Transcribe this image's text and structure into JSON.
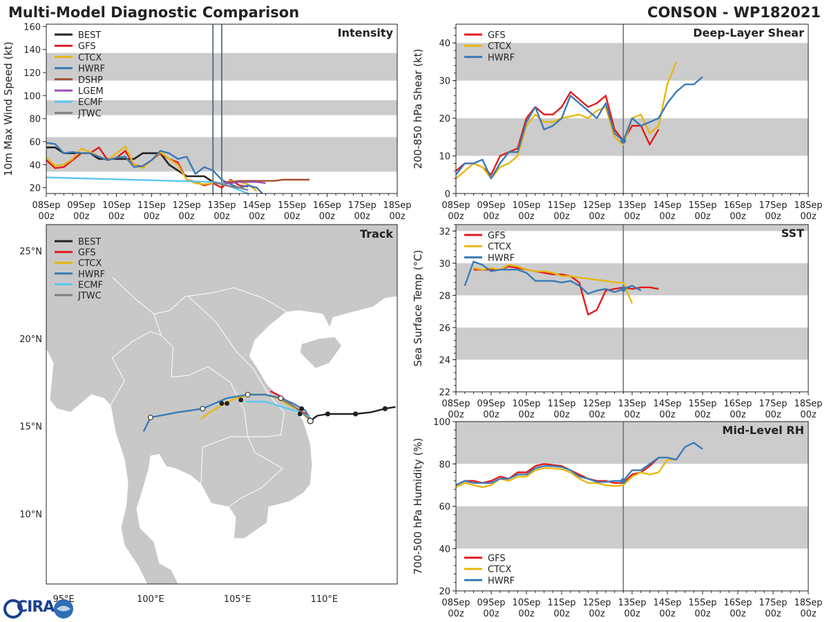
{
  "figure": {
    "title_left": "Multi-Model Diagnostic Comparison",
    "title_right": "CONSON - WP182021",
    "logo_text": "CIRA"
  },
  "colors": {
    "BEST": "#222222",
    "GFS": "#e31a1c",
    "CTCX": "#e8b70f",
    "HWRF": "#3a7ab6",
    "DSHP": "#a0522d",
    "LGEM": "#9b4fb0",
    "ECMF": "#5bc8f0",
    "JTWC": "#808080",
    "band": "#cccccc",
    "land": "#c8c8c8",
    "vline": "#607890"
  },
  "chart_data": [
    {
      "id": "intensity",
      "type": "line",
      "title": "Intensity",
      "ylabel": "10m Max Wind Speed (kt)",
      "xlim": [
        0,
        240
      ],
      "ylim": [
        15,
        162
      ],
      "yticks": [
        20,
        40,
        60,
        80,
        100,
        120,
        140,
        160
      ],
      "bands": [
        [
          34,
          64
        ],
        [
          83,
          96
        ],
        [
          113,
          137
        ]
      ],
      "x_ticks": [
        "08Sep\n00z",
        "09Sep\n00z",
        "10Sep\n00z",
        "11Sep\n00z",
        "12Sep\n00z",
        "13Sep\n00z",
        "14Sep\n00z",
        "15Sep\n00z",
        "16Sep\n00z",
        "17Sep\n00z",
        "18Sep\n00z"
      ],
      "vlines": [
        114,
        120
      ],
      "legend": [
        "BEST",
        "GFS",
        "CTCX",
        "HWRF",
        "DSHP",
        "LGEM",
        "ECMF",
        "JTWC"
      ],
      "series": [
        {
          "name": "BEST",
          "x": [
            0,
            6,
            12,
            18,
            24,
            30,
            36,
            42,
            48,
            54,
            60,
            66,
            72,
            78,
            84,
            90,
            96,
            102,
            108,
            114
          ],
          "y": [
            55,
            55,
            50,
            50,
            50,
            50,
            45,
            45,
            45,
            45,
            45,
            50,
            50,
            50,
            40,
            35,
            30,
            30,
            30,
            25
          ]
        },
        {
          "name": "GFS",
          "x": [
            0,
            6,
            12,
            18,
            24,
            30,
            36,
            42,
            48,
            54,
            60,
            66,
            72,
            78,
            84,
            90,
            96,
            102,
            108,
            114,
            120,
            126,
            132,
            138
          ],
          "y": [
            44,
            37,
            38,
            44,
            50,
            50,
            55,
            44,
            46,
            52,
            40,
            38,
            44,
            50,
            45,
            42,
            27,
            25,
            22,
            24,
            20,
            27,
            22,
            21
          ]
        },
        {
          "name": "CTCX",
          "x": [
            0,
            6,
            12,
            18,
            24,
            30,
            36,
            42,
            48,
            54,
            60,
            66,
            72,
            78,
            84,
            90,
            96,
            102,
            108,
            114,
            120,
            126,
            132,
            138,
            144
          ],
          "y": [
            46,
            39,
            40,
            45,
            54,
            51,
            47,
            44,
            50,
            56,
            40,
            37,
            44,
            51,
            45,
            40,
            27,
            24,
            23,
            24,
            24,
            26,
            25,
            23,
            17
          ]
        },
        {
          "name": "HWRF",
          "x": [
            0,
            6,
            12,
            18,
            24,
            30,
            36,
            42,
            48,
            54,
            60,
            66,
            72,
            78,
            84,
            90,
            96,
            102,
            108,
            114,
            120,
            126,
            132,
            138,
            144,
            150
          ],
          "y": [
            59,
            58,
            50,
            51,
            50,
            50,
            47,
            44,
            46,
            47,
            38,
            39,
            44,
            52,
            50,
            45,
            47,
            32,
            38,
            35,
            27,
            23,
            20,
            22,
            20,
            12
          ]
        },
        {
          "name": "DSHP",
          "x": [
            114,
            120,
            126,
            132,
            138,
            144,
            150,
            156,
            162,
            168,
            174,
            180
          ],
          "y": [
            24,
            24,
            25,
            26,
            26,
            26,
            26,
            26,
            27,
            27,
            27,
            27
          ]
        },
        {
          "name": "LGEM",
          "x": [
            114,
            120,
            126,
            132,
            138,
            144,
            150
          ],
          "y": [
            24,
            24,
            24,
            25,
            25,
            25,
            24
          ]
        },
        {
          "name": "ECMF",
          "x": [
            0,
            114,
            120,
            126,
            132,
            138,
            144,
            150
          ],
          "y": [
            29,
            25,
            24,
            21,
            18,
            15,
            12,
            10
          ]
        },
        {
          "name": "JTWC",
          "x": [
            114,
            120,
            126,
            132,
            138
          ],
          "y": [
            25,
            23,
            21,
            20,
            18
          ]
        }
      ]
    },
    {
      "id": "shear",
      "type": "line",
      "title": "Deep-Layer Shear",
      "ylabel": "200-850 hPa Shear (kt)",
      "xlim": [
        0,
        240
      ],
      "ylim": [
        0,
        45
      ],
      "yticks": [
        0,
        10,
        20,
        30,
        40
      ],
      "bands": [
        [
          10,
          20
        ],
        [
          30,
          40
        ]
      ],
      "x_ticks": [
        "08Sep\n00z",
        "09Sep\n00z",
        "10Sep\n00z",
        "11Sep\n00z",
        "12Sep\n00z",
        "13Sep\n00z",
        "14Sep\n00z",
        "15Sep\n00z",
        "16Sep\n00z",
        "17Sep\n00z",
        "18Sep\n00z"
      ],
      "vlines": [
        114
      ],
      "legend": [
        "GFS",
        "CTCX",
        "HWRF"
      ],
      "series": [
        {
          "name": "GFS",
          "x": [
            0,
            6,
            12,
            18,
            24,
            30,
            36,
            42,
            48,
            54,
            60,
            66,
            72,
            78,
            84,
            90,
            96,
            102,
            108,
            114,
            120,
            126,
            132,
            138,
            144
          ],
          "y": [
            6,
            8,
            8,
            7,
            5,
            10,
            11,
            12,
            20,
            23,
            21,
            21,
            23,
            27,
            25,
            23,
            24,
            26,
            17,
            14,
            18,
            18,
            13,
            17,
            null
          ]
        },
        {
          "name": "CTCX",
          "x": [
            0,
            6,
            12,
            18,
            24,
            30,
            36,
            42,
            48,
            54,
            60,
            66,
            72,
            78,
            84,
            90,
            96,
            102,
            108,
            114,
            120,
            126,
            132,
            138,
            144,
            150,
            156
          ],
          "y": [
            4,
            6,
            8,
            7,
            4,
            7,
            8,
            10,
            18,
            21,
            19,
            19,
            20,
            20.5,
            21,
            20,
            22,
            23,
            15,
            13,
            20,
            21,
            16,
            18,
            29,
            35,
            null
          ]
        },
        {
          "name": "HWRF",
          "x": [
            0,
            6,
            12,
            18,
            24,
            30,
            36,
            42,
            48,
            54,
            60,
            66,
            72,
            78,
            84,
            90,
            96,
            102,
            108,
            114,
            120,
            126,
            132,
            138,
            144,
            150,
            156,
            162,
            168
          ],
          "y": [
            5,
            8,
            8,
            9,
            4,
            8,
            11,
            11,
            19,
            23,
            17,
            18,
            20,
            26,
            24,
            22,
            20,
            24,
            16,
            14,
            20,
            18,
            19,
            20,
            24,
            27,
            29,
            29,
            31
          ]
        }
      ]
    },
    {
      "id": "sst",
      "type": "line",
      "title": "SST",
      "ylabel": "Sea Surface Temp (°C)",
      "xlim": [
        0,
        240
      ],
      "ylim": [
        22,
        32.4
      ],
      "yticks": [
        22,
        24,
        26,
        28,
        30,
        32
      ],
      "bands": [
        [
          24,
          26
        ],
        [
          28,
          30
        ],
        [
          32,
          32.4
        ]
      ],
      "x_ticks": [
        "08Sep\n00z",
        "09Sep\n00z",
        "10Sep\n00z",
        "11Sep\n00z",
        "12Sep\n00z",
        "13Sep\n00z",
        "14Sep\n00z",
        "15Sep\n00z",
        "16Sep\n00z",
        "17Sep\n00z",
        "18Sep\n00z"
      ],
      "vlines": [
        114
      ],
      "legend": [
        "GFS",
        "CTCX",
        "HWRF"
      ],
      "series": [
        {
          "name": "GFS",
          "x": [
            12,
            18,
            24,
            30,
            36,
            42,
            48,
            54,
            60,
            66,
            72,
            78,
            84,
            90,
            96,
            102,
            108,
            114,
            120,
            126,
            132,
            138
          ],
          "y": [
            29.6,
            29.6,
            29.6,
            29.6,
            29.8,
            29.7,
            29.6,
            29.5,
            29.4,
            29.3,
            29.3,
            29.2,
            28.8,
            26.8,
            27.1,
            28.3,
            28.4,
            28.5,
            28.4,
            28.5,
            28.5,
            28.4
          ]
        },
        {
          "name": "CTCX",
          "x": [
            12,
            18,
            24,
            30,
            36,
            42,
            48,
            54,
            60,
            66,
            72,
            78,
            84,
            102,
            108,
            114,
            120
          ],
          "y": [
            29.7,
            29.6,
            29.7,
            29.6,
            29.9,
            29.8,
            29.6,
            29.5,
            29.5,
            29.4,
            29.2,
            29.2,
            29.1,
            28.9,
            28.8,
            28.8,
            27.5
          ]
        },
        {
          "name": "HWRF",
          "x": [
            6,
            12,
            18,
            24,
            30,
            36,
            42,
            48,
            54,
            60,
            66,
            72,
            78,
            84,
            90,
            96,
            102,
            108,
            114,
            120,
            126
          ],
          "y": [
            28.6,
            30.1,
            29.9,
            29.5,
            29.6,
            29.6,
            29.6,
            29.4,
            28.9,
            28.9,
            28.9,
            28.8,
            28.9,
            28.6,
            28.1,
            28.3,
            28.4,
            28.2,
            28.4,
            28.6,
            28.3
          ]
        }
      ]
    },
    {
      "id": "rh",
      "type": "line",
      "title": "Mid-Level RH",
      "ylabel": "700-500 hPa Humidity (%)",
      "xlim": [
        0,
        240
      ],
      "ylim": [
        20,
        100
      ],
      "yticks": [
        20,
        40,
        60,
        80,
        100
      ],
      "bands": [
        [
          40,
          60
        ],
        [
          80,
          100
        ]
      ],
      "x_ticks": [
        "08Sep\n00z",
        "09Sep\n00z",
        "10Sep\n00z",
        "11Sep\n00z",
        "12Sep\n00z",
        "13Sep\n00z",
        "14Sep\n00z",
        "15Sep\n00z",
        "16Sep\n00z",
        "17Sep\n00z",
        "18Sep\n00z"
      ],
      "vlines": [
        114
      ],
      "legend": [
        "GFS",
        "CTCX",
        "HWRF"
      ],
      "series": [
        {
          "name": "GFS",
          "x": [
            0,
            6,
            12,
            18,
            24,
            30,
            36,
            42,
            48,
            54,
            60,
            66,
            72,
            78,
            84,
            90,
            96,
            102,
            108,
            114,
            120,
            126,
            132,
            138
          ],
          "y": [
            70,
            72,
            72,
            71,
            72,
            74,
            73,
            76,
            76,
            79,
            80,
            79.5,
            79,
            77,
            75,
            73,
            72,
            72,
            71,
            71,
            75,
            76,
            79,
            83
          ]
        },
        {
          "name": "CTCX",
          "x": [
            0,
            6,
            12,
            18,
            24,
            30,
            36,
            42,
            48,
            54,
            60,
            66,
            72,
            78,
            84,
            90,
            96,
            102,
            108,
            114,
            120,
            126,
            132,
            138,
            144,
            150
          ],
          "y": [
            69,
            71,
            70,
            69,
            70,
            73,
            72,
            74,
            74,
            77,
            78,
            78,
            77.5,
            76,
            73,
            71,
            71,
            70,
            69.5,
            70,
            74,
            76,
            75,
            76,
            82,
            82
          ]
        },
        {
          "name": "HWRF",
          "x": [
            0,
            6,
            12,
            18,
            24,
            30,
            36,
            42,
            48,
            54,
            60,
            66,
            72,
            78,
            84,
            90,
            96,
            102,
            108,
            114,
            120,
            126,
            132,
            138,
            144,
            150,
            156,
            162,
            168
          ],
          "y": [
            70,
            72,
            71,
            71,
            71,
            73,
            73,
            75,
            75,
            78,
            79,
            79,
            78.5,
            77,
            74,
            73,
            71.5,
            71.5,
            72,
            72,
            77,
            77,
            80,
            83,
            83,
            82,
            88,
            90,
            87
          ]
        }
      ]
    },
    {
      "id": "track",
      "type": "scatter",
      "title": "Track",
      "xlim": [
        94.0,
        114.2
      ],
      "ylim": [
        6.0,
        26.5
      ],
      "lon_ticks": [
        "95°E",
        "100°E",
        "105°E",
        "110°E"
      ],
      "lat_ticks": [
        "10°N",
        "15°N",
        "20°N",
        "25°N"
      ],
      "legend": [
        "BEST",
        "GFS",
        "CTCX",
        "HWRF",
        "ECMF",
        "JTWC"
      ],
      "series": [
        {
          "name": "BEST",
          "lon": [
            114.1,
            113.5,
            112.7,
            111.8,
            111.0,
            110.2,
            109.6,
            109.2
          ],
          "lat": [
            16.1,
            16.0,
            15.8,
            15.7,
            15.7,
            15.7,
            15.6,
            15.3
          ]
        },
        {
          "name": "GFS",
          "lon": [
            109.2,
            109.1,
            108.6,
            108.0,
            107.5,
            106.9
          ],
          "lat": [
            15.3,
            15.6,
            15.9,
            16.3,
            16.7,
            17.0
          ]
        },
        {
          "name": "CTCX",
          "lon": [
            109.2,
            108.7,
            108.0,
            107.3,
            106.6,
            105.8,
            104.9,
            104.1,
            103.4,
            102.9
          ],
          "lat": [
            15.3,
            15.8,
            16.2,
            16.6,
            16.8,
            16.8,
            16.6,
            16.2,
            15.8,
            15.4
          ]
        },
        {
          "name": "HWRF",
          "lon": [
            109.2,
            108.9,
            108.2,
            107.5,
            106.6,
            105.6,
            104.4,
            103.0,
            101.6,
            100.0,
            99.6
          ],
          "lat": [
            15.4,
            15.9,
            16.3,
            16.6,
            16.8,
            16.8,
            16.6,
            16.0,
            15.8,
            15.5,
            14.7
          ]
        },
        {
          "name": "ECMF",
          "lon": [
            109.2,
            108.6,
            107.6,
            106.6,
            105.5
          ],
          "lat": [
            15.5,
            15.8,
            16.1,
            16.4,
            16.4
          ]
        },
        {
          "name": "JTWC",
          "lon": [
            109.2,
            108.8,
            108.3,
            107.6
          ],
          "lat": [
            15.4,
            15.7,
            16.1,
            16.5
          ]
        }
      ]
    }
  ]
}
